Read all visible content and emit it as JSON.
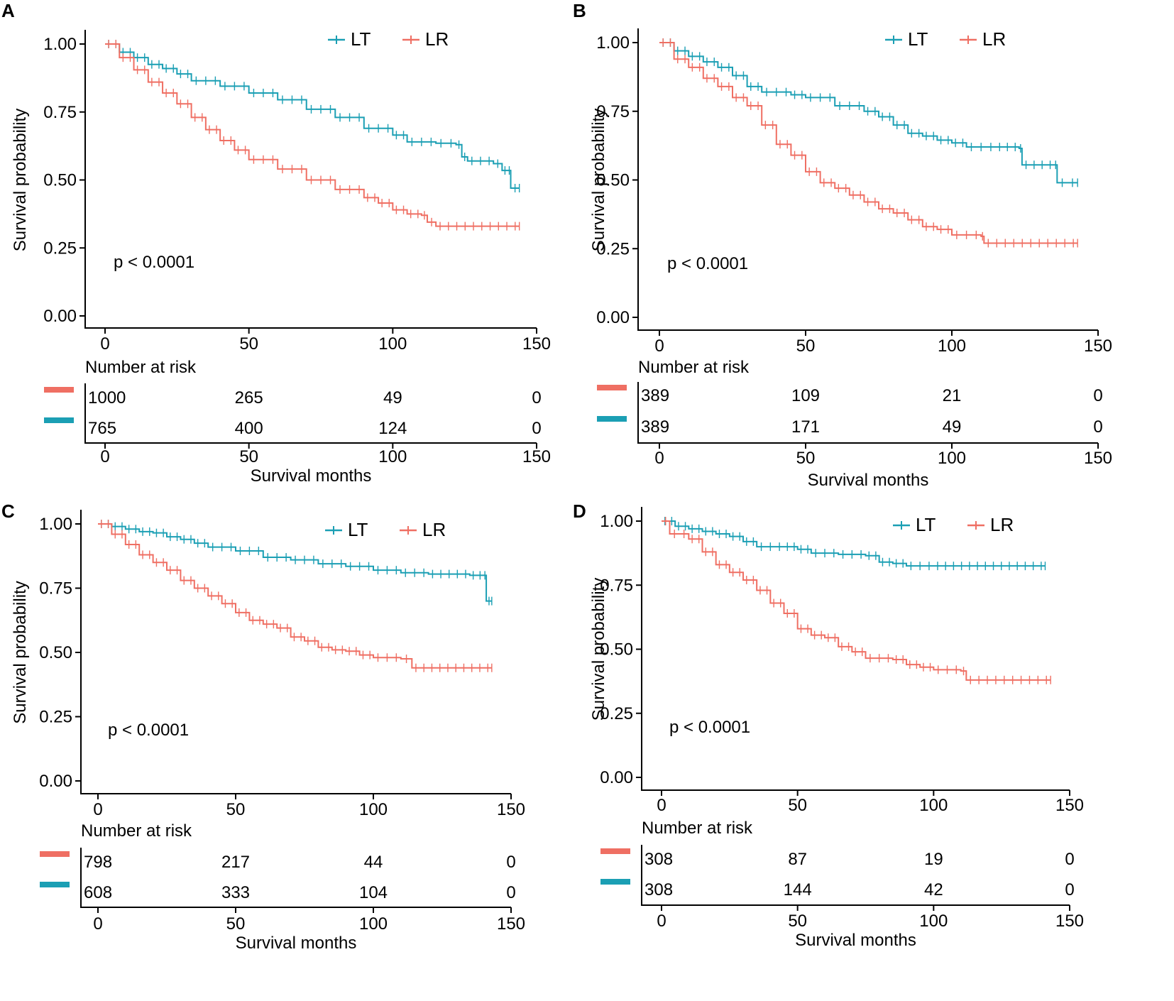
{
  "colors": {
    "LT": "#1b9fb4",
    "LR": "#ef6f63"
  },
  "chart_data": [
    {
      "panel": "A",
      "type": "line",
      "title": "",
      "ylabel": "Survival probability",
      "xlabel": "Survival months",
      "xlim": [
        0,
        150
      ],
      "ylim": [
        0,
        1
      ],
      "x_ticks": [
        "0",
        "50",
        "100",
        "150"
      ],
      "y_ticks": [
        "0.00",
        "0.25",
        "0.50",
        "0.75",
        "1.00"
      ],
      "pvalue": "p < 0.0001",
      "legend": [
        "LT",
        "LR"
      ],
      "risk_title": "Number at risk",
      "risk_table": [
        {
          "name": "LR",
          "values": [
            "1000",
            "265",
            "49",
            "0"
          ]
        },
        {
          "name": "LT",
          "values": [
            "765",
            "400",
            "124",
            "0"
          ]
        }
      ],
      "series": [
        {
          "name": "LT",
          "points": [
            [
              0,
              1.0
            ],
            [
              5,
              0.97
            ],
            [
              10,
              0.95
            ],
            [
              15,
              0.925
            ],
            [
              20,
              0.91
            ],
            [
              25,
              0.89
            ],
            [
              30,
              0.865
            ],
            [
              40,
              0.845
            ],
            [
              50,
              0.82
            ],
            [
              60,
              0.795
            ],
            [
              70,
              0.76
            ],
            [
              80,
              0.73
            ],
            [
              90,
              0.69
            ],
            [
              100,
              0.665
            ],
            [
              105,
              0.64
            ],
            [
              115,
              0.635
            ],
            [
              122,
              0.63
            ],
            [
              124,
              0.585
            ],
            [
              126,
              0.57
            ],
            [
              135,
              0.56
            ],
            [
              138,
              0.535
            ],
            [
              140,
              0.535
            ],
            [
              141,
              0.47
            ],
            [
              144,
              0.47
            ]
          ]
        },
        {
          "name": "LR",
          "points": [
            [
              0,
              1.0
            ],
            [
              5,
              0.95
            ],
            [
              10,
              0.905
            ],
            [
              15,
              0.86
            ],
            [
              20,
              0.82
            ],
            [
              25,
              0.78
            ],
            [
              30,
              0.73
            ],
            [
              35,
              0.685
            ],
            [
              40,
              0.645
            ],
            [
              45,
              0.61
            ],
            [
              50,
              0.575
            ],
            [
              60,
              0.54
            ],
            [
              70,
              0.5
            ],
            [
              80,
              0.465
            ],
            [
              90,
              0.435
            ],
            [
              95,
              0.415
            ],
            [
              100,
              0.39
            ],
            [
              105,
              0.375
            ],
            [
              110,
              0.37
            ],
            [
              112,
              0.345
            ],
            [
              115,
              0.33
            ],
            [
              144,
              0.33
            ]
          ]
        }
      ]
    },
    {
      "panel": "B",
      "type": "line",
      "title": "",
      "ylabel": "Survival probability",
      "xlabel": "Survival months",
      "xlim": [
        0,
        150
      ],
      "ylim": [
        0,
        1
      ],
      "x_ticks": [
        "0",
        "50",
        "100",
        "150"
      ],
      "y_ticks": [
        "0.00",
        "0.25",
        "0.50",
        "0.75",
        "1.00"
      ],
      "pvalue": "p < 0.0001",
      "legend": [
        "LT",
        "LR"
      ],
      "risk_title": "Number at risk",
      "risk_table": [
        {
          "name": "LR",
          "values": [
            "389",
            "109",
            "21",
            "0"
          ]
        },
        {
          "name": "LT",
          "values": [
            "389",
            "171",
            "49",
            "0"
          ]
        }
      ],
      "series": [
        {
          "name": "LT",
          "points": [
            [
              0,
              1.0
            ],
            [
              5,
              0.97
            ],
            [
              10,
              0.95
            ],
            [
              15,
              0.93
            ],
            [
              20,
              0.91
            ],
            [
              25,
              0.88
            ],
            [
              30,
              0.84
            ],
            [
              35,
              0.82
            ],
            [
              45,
              0.81
            ],
            [
              50,
              0.8
            ],
            [
              60,
              0.77
            ],
            [
              70,
              0.75
            ],
            [
              75,
              0.73
            ],
            [
              80,
              0.7
            ],
            [
              85,
              0.67
            ],
            [
              90,
              0.66
            ],
            [
              95,
              0.645
            ],
            [
              100,
              0.635
            ],
            [
              105,
              0.62
            ],
            [
              115,
              0.62
            ],
            [
              123,
              0.615
            ],
            [
              124,
              0.555
            ],
            [
              135,
              0.555
            ],
            [
              136,
              0.49
            ],
            [
              143,
              0.49
            ]
          ]
        },
        {
          "name": "LR",
          "points": [
            [
              0,
              1.0
            ],
            [
              5,
              0.94
            ],
            [
              10,
              0.91
            ],
            [
              15,
              0.87
            ],
            [
              20,
              0.84
            ],
            [
              25,
              0.8
            ],
            [
              30,
              0.77
            ],
            [
              35,
              0.7
            ],
            [
              40,
              0.63
            ],
            [
              45,
              0.59
            ],
            [
              50,
              0.53
            ],
            [
              55,
              0.49
            ],
            [
              60,
              0.47
            ],
            [
              65,
              0.445
            ],
            [
              70,
              0.42
            ],
            [
              75,
              0.395
            ],
            [
              80,
              0.38
            ],
            [
              85,
              0.355
            ],
            [
              90,
              0.33
            ],
            [
              95,
              0.32
            ],
            [
              100,
              0.3
            ],
            [
              110,
              0.295
            ],
            [
              111,
              0.27
            ],
            [
              143,
              0.27
            ]
          ]
        }
      ]
    },
    {
      "panel": "C",
      "type": "line",
      "title": "",
      "ylabel": "Survival probability",
      "xlabel": "Survival months",
      "xlim": [
        0,
        150
      ],
      "ylim": [
        0,
        1
      ],
      "x_ticks": [
        "0",
        "50",
        "100",
        "150"
      ],
      "y_ticks": [
        "0.00",
        "0.25",
        "0.50",
        "0.75",
        "1.00"
      ],
      "pvalue": "p < 0.0001",
      "legend": [
        "LT",
        "LR"
      ],
      "risk_title": "Number at risk",
      "risk_table": [
        {
          "name": "LR",
          "values": [
            "798",
            "217",
            "44",
            "0"
          ]
        },
        {
          "name": "LT",
          "values": [
            "608",
            "333",
            "104",
            "0"
          ]
        }
      ],
      "series": [
        {
          "name": "LT",
          "points": [
            [
              0,
              1.0
            ],
            [
              5,
              0.99
            ],
            [
              10,
              0.98
            ],
            [
              15,
              0.97
            ],
            [
              20,
              0.965
            ],
            [
              25,
              0.95
            ],
            [
              30,
              0.94
            ],
            [
              35,
              0.925
            ],
            [
              40,
              0.91
            ],
            [
              50,
              0.895
            ],
            [
              60,
              0.87
            ],
            [
              70,
              0.86
            ],
            [
              80,
              0.845
            ],
            [
              90,
              0.835
            ],
            [
              100,
              0.82
            ],
            [
              110,
              0.81
            ],
            [
              120,
              0.805
            ],
            [
              135,
              0.8
            ],
            [
              140,
              0.8
            ],
            [
              141,
              0.7
            ],
            [
              143,
              0.7
            ]
          ]
        },
        {
          "name": "LR",
          "points": [
            [
              0,
              1.0
            ],
            [
              5,
              0.96
            ],
            [
              10,
              0.92
            ],
            [
              15,
              0.88
            ],
            [
              20,
              0.85
            ],
            [
              25,
              0.82
            ],
            [
              30,
              0.78
            ],
            [
              35,
              0.75
            ],
            [
              40,
              0.72
            ],
            [
              45,
              0.69
            ],
            [
              50,
              0.655
            ],
            [
              55,
              0.625
            ],
            [
              60,
              0.61
            ],
            [
              65,
              0.595
            ],
            [
              70,
              0.56
            ],
            [
              75,
              0.545
            ],
            [
              80,
              0.52
            ],
            [
              85,
              0.51
            ],
            [
              90,
              0.505
            ],
            [
              95,
              0.49
            ],
            [
              100,
              0.48
            ],
            [
              110,
              0.475
            ],
            [
              114,
              0.44
            ],
            [
              143,
              0.44
            ]
          ]
        }
      ]
    },
    {
      "panel": "D",
      "type": "line",
      "title": "",
      "ylabel": "Survival probability",
      "xlabel": "Survival months",
      "xlim": [
        0,
        150
      ],
      "ylim": [
        0,
        1
      ],
      "x_ticks": [
        "0",
        "50",
        "100",
        "150"
      ],
      "y_ticks": [
        "0.00",
        "0.25",
        "0.50",
        "0.75",
        "1.00"
      ],
      "pvalue": "p < 0.0001",
      "legend": [
        "LT",
        "LR"
      ],
      "risk_title": "Number at risk",
      "risk_table": [
        {
          "name": "LR",
          "values": [
            "308",
            "87",
            "19",
            "0"
          ]
        },
        {
          "name": "LT",
          "values": [
            "308",
            "144",
            "42",
            "0"
          ]
        }
      ],
      "series": [
        {
          "name": "LT",
          "points": [
            [
              0,
              1.0
            ],
            [
              5,
              0.98
            ],
            [
              10,
              0.97
            ],
            [
              15,
              0.96
            ],
            [
              20,
              0.95
            ],
            [
              25,
              0.94
            ],
            [
              30,
              0.92
            ],
            [
              35,
              0.9
            ],
            [
              45,
              0.9
            ],
            [
              50,
              0.89
            ],
            [
              55,
              0.875
            ],
            [
              65,
              0.87
            ],
            [
              75,
              0.865
            ],
            [
              80,
              0.84
            ],
            [
              85,
              0.835
            ],
            [
              90,
              0.825
            ],
            [
              100,
              0.825
            ],
            [
              141,
              0.825
            ]
          ]
        },
        {
          "name": "LR",
          "points": [
            [
              0,
              1.0
            ],
            [
              3,
              0.95
            ],
            [
              10,
              0.93
            ],
            [
              15,
              0.88
            ],
            [
              20,
              0.83
            ],
            [
              25,
              0.8
            ],
            [
              30,
              0.77
            ],
            [
              35,
              0.73
            ],
            [
              40,
              0.68
            ],
            [
              45,
              0.64
            ],
            [
              50,
              0.58
            ],
            [
              55,
              0.555
            ],
            [
              60,
              0.545
            ],
            [
              65,
              0.51
            ],
            [
              70,
              0.49
            ],
            [
              75,
              0.465
            ],
            [
              85,
              0.46
            ],
            [
              90,
              0.44
            ],
            [
              95,
              0.43
            ],
            [
              100,
              0.42
            ],
            [
              110,
              0.415
            ],
            [
              112,
              0.38
            ],
            [
              143,
              0.38
            ]
          ]
        }
      ]
    }
  ]
}
